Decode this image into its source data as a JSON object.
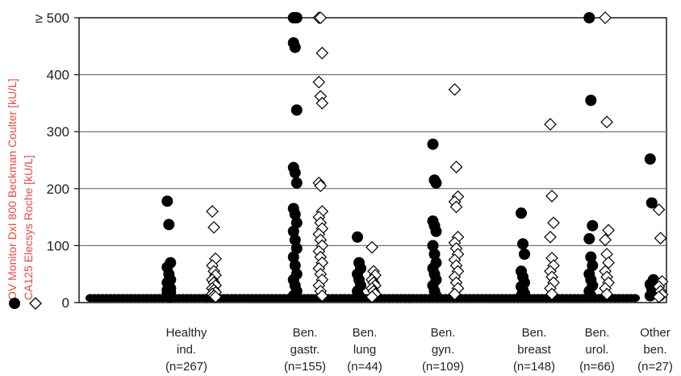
{
  "chart_data": {
    "type": "scatter",
    "ylabel_series1": "OV Monitor DxI 800 Beckman Coulter [kU/L]",
    "ylabel_series2": "CA125 Elecsys Roche [kU/L]",
    "ylim": [
      0,
      500
    ],
    "yticks": [
      "0",
      "100",
      "200",
      "300",
      "400",
      "500"
    ],
    "ytick_top_prefix": "≥",
    "grid": true,
    "colors": {
      "series1": "#000000",
      "series2": "#ffffff",
      "label": "#e8483f"
    },
    "categories": [
      {
        "label": [
          "Healthy",
          "ind.",
          "(n=267)"
        ],
        "ov": [
          178,
          137,
          70,
          62,
          50,
          40,
          35,
          30,
          25,
          22,
          20,
          18,
          15,
          12,
          10
        ],
        "ca125": [
          160,
          132,
          77,
          65,
          55,
          48,
          40,
          35,
          30,
          25,
          22,
          18,
          15,
          12,
          10
        ]
      },
      {
        "label": [
          "Ben.",
          "gastr.",
          "(n=155)"
        ],
        "ov": [
          500,
          500,
          500,
          456,
          448,
          338,
          237,
          228,
          210,
          165,
          155,
          140,
          125,
          110,
          95,
          80,
          65,
          50,
          40,
          30,
          20,
          12
        ],
        "ca125": [
          500,
          500,
          438,
          387,
          362,
          350,
          210,
          205,
          160,
          150,
          140,
          130,
          120,
          110,
          100,
          90,
          80,
          70,
          60,
          50,
          40,
          30,
          20,
          12
        ]
      },
      {
        "label": [
          "Ben.",
          "lung",
          "(n=44)"
        ],
        "ov": [
          115,
          70,
          60,
          50,
          40,
          30,
          20,
          12
        ],
        "ca125": [
          97,
          55,
          48,
          40,
          35,
          30,
          25,
          20,
          15,
          10
        ]
      },
      {
        "label": [
          "Ben.",
          "gyn.",
          "(n=109)"
        ],
        "ov": [
          278,
          215,
          210,
          143,
          135,
          125,
          100,
          85,
          70,
          60,
          50,
          40,
          30,
          20,
          12
        ],
        "ca125": [
          374,
          238,
          186,
          177,
          168,
          115,
          105,
          95,
          85,
          75,
          65,
          55,
          45,
          35,
          25,
          15
        ]
      },
      {
        "label": [
          "Ben.",
          "breast",
          "(n=148)"
        ],
        "ov": [
          157,
          103,
          85,
          55,
          45,
          35,
          28,
          22,
          16,
          12
        ],
        "ca125": [
          313,
          187,
          140,
          115,
          78,
          65,
          55,
          45,
          35,
          25,
          15
        ]
      },
      {
        "label": [
          "Ben.",
          "urol.",
          "(n=66)"
        ],
        "ov": [
          500,
          355,
          135,
          112,
          80,
          65,
          50,
          40,
          30,
          20,
          12
        ],
        "ca125": [
          500,
          317,
          127,
          110,
          85,
          70,
          55,
          45,
          35,
          25,
          15
        ]
      },
      {
        "label": [
          "Other",
          "ben.",
          "(n=27)"
        ],
        "ov": [
          252,
          175,
          40,
          32,
          25,
          18,
          12
        ],
        "ca125": [
          163,
          113,
          37,
          28,
          20,
          14,
          10
        ]
      }
    ]
  }
}
